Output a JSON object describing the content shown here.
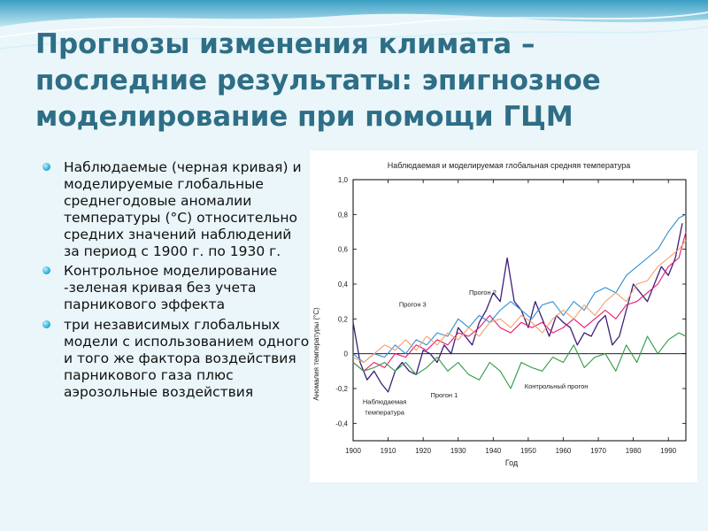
{
  "slide": {
    "title_lines": [
      "Прогнозы изменения климата –",
      "последние результаты: эпигнозное",
      "моделирование при помощи ГЦМ"
    ],
    "bullets": [
      "Наблюдаемые (черная кривая) и моделируемые глобальные среднегодовые аномалии температуры (°С) относительно средних значений наблюдений за период с 1900 г. по 1930 г.",
      "Контрольное моделирование -зеленая кривая  без учета парникового эффекта",
      "три независимых глобальных модели с использованием одного и того же фактора воздействия парникового газа плюс аэрозольные воздействия"
    ],
    "colors": {
      "title": "#2e6e86",
      "bullet": "#2ab0dc",
      "background": "#eaf6f9"
    }
  },
  "chart_data": {
    "type": "line",
    "title": "Наблюдаемая и моделируемая глобальная средняя температура",
    "xlabel": "Год",
    "ylabel": "Аномалия температуры (°С)",
    "xlim": [
      1900,
      1995
    ],
    "ylim": [
      -0.5,
      1.0
    ],
    "xticks": [
      1900,
      1910,
      1920,
      1930,
      1940,
      1950,
      1960,
      1970,
      1980,
      1990
    ],
    "yticks": [
      -0.4,
      -0.2,
      0,
      0.2,
      0.4,
      0.6,
      0.8,
      1.0
    ],
    "ytick_labels": [
      "-0,4",
      "-0,2",
      "0",
      "0,2",
      "0,4",
      "0,6",
      "0,8",
      "1,0"
    ],
    "annotations": [
      {
        "text": "Прогон 2",
        "x": 1937,
        "y": 0.34
      },
      {
        "text": "Прогон 3",
        "x": 1917,
        "y": 0.27
      },
      {
        "text": "Прогон 1",
        "x": 1926,
        "y": -0.25
      },
      {
        "text": "Контрольный прогон",
        "x": 1958,
        "y": -0.2
      },
      {
        "text": "Наблюдаемая",
        "x": 1909,
        "y": -0.29
      },
      {
        "text": "температура",
        "x": 1909,
        "y": -0.35
      }
    ],
    "series": [
      {
        "color": "#3c1f7a",
        "x": [
          1900,
          1902,
          1904,
          1906,
          1908,
          1910,
          1912,
          1914,
          1916,
          1918,
          1920,
          1922,
          1924,
          1926,
          1928,
          1930,
          1932,
          1934,
          1936,
          1938,
          1940,
          1942,
          1944,
          1946,
          1948,
          1950,
          1952,
          1954,
          1956,
          1958,
          1960,
          1962,
          1964,
          1966,
          1968,
          1970,
          1972,
          1974,
          1976,
          1978,
          1980,
          1982,
          1984,
          1986,
          1988,
          1990,
          1992,
          1994
        ],
        "y": [
          0.18,
          -0.05,
          -0.15,
          -0.1,
          -0.17,
          -0.22,
          -0.1,
          -0.05,
          -0.1,
          -0.12,
          0.02,
          0.0,
          -0.05,
          0.05,
          0.0,
          0.15,
          0.1,
          0.05,
          0.18,
          0.25,
          0.35,
          0.3,
          0.55,
          0.3,
          0.25,
          0.15,
          0.3,
          0.2,
          0.1,
          0.22,
          0.18,
          0.15,
          0.05,
          0.12,
          0.1,
          0.18,
          0.22,
          0.05,
          0.1,
          0.25,
          0.4,
          0.35,
          0.3,
          0.4,
          0.5,
          0.45,
          0.55,
          0.75
        ]
      },
      {
        "color": "#e8186e",
        "x": [
          1900,
          1903,
          1906,
          1909,
          1912,
          1915,
          1918,
          1921,
          1924,
          1927,
          1930,
          1933,
          1936,
          1939,
          1942,
          1945,
          1948,
          1951,
          1954,
          1957,
          1960,
          1963,
          1966,
          1969,
          1972,
          1975,
          1978,
          1981,
          1984,
          1987,
          1990,
          1993,
          1995
        ],
        "y": [
          -0.05,
          -0.1,
          -0.05,
          -0.08,
          0.0,
          -0.02,
          0.05,
          0.02,
          0.08,
          0.05,
          0.12,
          0.1,
          0.15,
          0.22,
          0.15,
          0.12,
          0.18,
          0.15,
          0.18,
          0.12,
          0.15,
          0.2,
          0.15,
          0.2,
          0.25,
          0.2,
          0.28,
          0.3,
          0.35,
          0.4,
          0.5,
          0.55,
          0.7
        ]
      },
      {
        "color": "#2f8fd6",
        "x": [
          1900,
          1903,
          1906,
          1909,
          1912,
          1915,
          1918,
          1921,
          1924,
          1927,
          1930,
          1933,
          1936,
          1939,
          1942,
          1945,
          1948,
          1951,
          1954,
          1957,
          1960,
          1963,
          1966,
          1969,
          1972,
          1975,
          1978,
          1981,
          1984,
          1987,
          1990,
          1993,
          1995
        ],
        "y": [
          0.0,
          -0.05,
          0.0,
          -0.02,
          0.05,
          0.0,
          0.08,
          0.05,
          0.12,
          0.1,
          0.2,
          0.15,
          0.22,
          0.18,
          0.25,
          0.3,
          0.25,
          0.2,
          0.28,
          0.3,
          0.22,
          0.3,
          0.25,
          0.35,
          0.38,
          0.35,
          0.45,
          0.5,
          0.55,
          0.6,
          0.7,
          0.78,
          0.8
        ]
      },
      {
        "color": "#f4a06a",
        "x": [
          1900,
          1903,
          1906,
          1909,
          1912,
          1915,
          1918,
          1921,
          1924,
          1927,
          1930,
          1933,
          1936,
          1939,
          1942,
          1945,
          1948,
          1951,
          1954,
          1957,
          1960,
          1963,
          1966,
          1969,
          1972,
          1975,
          1978,
          1981,
          1984,
          1987,
          1990,
          1993,
          1995
        ],
        "y": [
          -0.02,
          -0.05,
          0.0,
          0.05,
          0.02,
          0.08,
          0.02,
          0.1,
          0.05,
          0.12,
          0.08,
          0.15,
          0.1,
          0.18,
          0.2,
          0.15,
          0.22,
          0.18,
          0.12,
          0.2,
          0.25,
          0.2,
          0.28,
          0.22,
          0.3,
          0.35,
          0.3,
          0.4,
          0.42,
          0.5,
          0.55,
          0.6,
          0.65
        ]
      },
      {
        "color": "#2f9a45",
        "x": [
          1900,
          1903,
          1906,
          1909,
          1912,
          1915,
          1918,
          1921,
          1924,
          1927,
          1930,
          1933,
          1936,
          1939,
          1942,
          1945,
          1948,
          1951,
          1954,
          1957,
          1960,
          1963,
          1966,
          1969,
          1972,
          1975,
          1978,
          1981,
          1984,
          1987,
          1990,
          1993,
          1995
        ],
        "y": [
          -0.05,
          -0.1,
          -0.08,
          -0.05,
          -0.1,
          -0.05,
          -0.12,
          -0.08,
          -0.02,
          -0.1,
          -0.05,
          -0.12,
          -0.15,
          -0.05,
          -0.1,
          -0.2,
          -0.05,
          -0.08,
          -0.1,
          -0.02,
          -0.05,
          0.05,
          -0.08,
          -0.02,
          0.0,
          -0.1,
          0.05,
          -0.05,
          0.1,
          0.0,
          0.08,
          0.12,
          0.1
        ]
      }
    ]
  }
}
